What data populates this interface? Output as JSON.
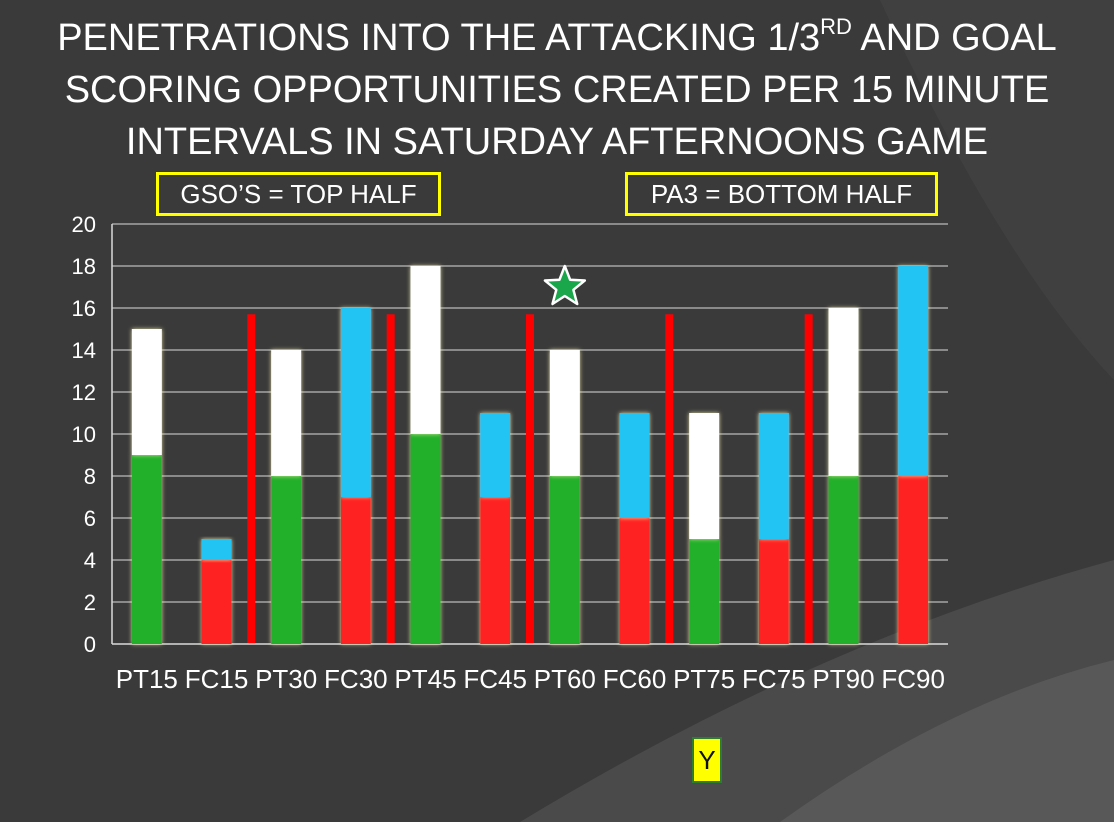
{
  "title": {
    "line1_before_sup": "PENETRATIONS INTO THE ATTACKING 1/3",
    "line1_sup": "RD",
    "line1_after_sup": " AND GOAL",
    "line2": "SCORING OPPORTUNITIES CREATED PER 15 MINUTE",
    "line3": "INTERVALS IN SATURDAY AFTERNOONS GAME"
  },
  "legend": {
    "left": "GSO’S = TOP HALF",
    "right": "PA3 = BOTTOM HALF"
  },
  "badge": "Y",
  "colors": {
    "background": "#3a3a3a",
    "pt_bottom": "#22b02c",
    "pt_top": "#ffffff",
    "fc_bottom": "#ff2222",
    "fc_top": "#22c4f4",
    "separator": "#ff0000",
    "star": "#1aa64a",
    "grid": "#d9d9d9",
    "axis_text": "#ffffff",
    "legend_border": "#ffff00"
  },
  "chart_data": {
    "type": "bar",
    "stacked": true,
    "categories": [
      "PT15",
      "FC15",
      "PT30",
      "FC30",
      "PT45",
      "FC45",
      "PT60",
      "FC60",
      "PT75",
      "FC75",
      "PT90",
      "FC90"
    ],
    "series": [
      {
        "values": [
          9,
          4,
          8,
          7,
          10,
          7,
          8,
          6,
          5,
          5,
          8,
          8
        ]
      },
      {
        "values": [
          6,
          1,
          6,
          9,
          8,
          4,
          6,
          5,
          6,
          6,
          8,
          10
        ]
      }
    ],
    "ylim": [
      0,
      20
    ],
    "yticks": [
      "0",
      "2",
      "4",
      "6",
      "8",
      "10",
      "12",
      "14",
      "16",
      "18",
      "20"
    ],
    "grid": true,
    "separators_after_category_index": [
      1,
      3,
      5,
      7,
      9
    ],
    "separator_height_value": 15.7,
    "star_marker": {
      "category_index": 6,
      "value": 17
    }
  }
}
